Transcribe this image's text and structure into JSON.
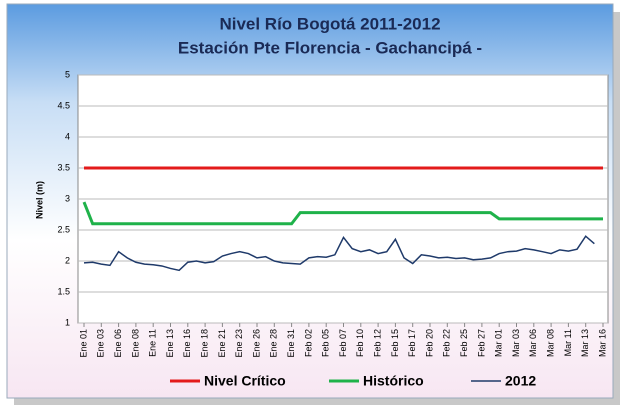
{
  "chart_data": {
    "type": "line",
    "title": "Nivel Río Bogotá 2011-2012",
    "subtitle": "Estación Pte Florencia - Gachancipá -",
    "y_label": "Nivel (m)",
    "categories": [
      "Ene 01",
      null,
      "Ene 03",
      null,
      "Ene 06",
      null,
      "Ene 08",
      null,
      "Ene 11",
      null,
      "Ene 13",
      null,
      "Ene 16",
      null,
      "Ene 18",
      null,
      "Ene 21",
      null,
      "Ene 23",
      null,
      "Ene 26",
      null,
      "Ene 28",
      null,
      "Ene 31",
      null,
      "Feb 02",
      null,
      "Feb 05",
      null,
      "Feb 07",
      null,
      "Feb 10",
      null,
      "Feb 12",
      null,
      "Feb 15",
      null,
      "Feb 17",
      null,
      "Feb 20",
      null,
      "Feb 22",
      null,
      "Feb 25",
      null,
      "Feb 27",
      null,
      "Mar 01",
      null,
      "Mar 03",
      null,
      "Mar 06",
      null,
      "Mar 08",
      null,
      "Mar 11",
      null,
      "Mar 13",
      null,
      "Mar 16"
    ],
    "series": [
      {
        "name": "Nivel Crítico",
        "color": "#e31b1b",
        "values": [
          3.5,
          3.5,
          3.5,
          3.5,
          3.5,
          3.5,
          3.5,
          3.5,
          3.5,
          3.5,
          3.5,
          3.5,
          3.5,
          3.5,
          3.5,
          3.5,
          3.5,
          3.5,
          3.5,
          3.5,
          3.5,
          3.5,
          3.5,
          3.5,
          3.5,
          3.5,
          3.5,
          3.5,
          3.5,
          3.5,
          3.5,
          3.5,
          3.5,
          3.5,
          3.5,
          3.5,
          3.5,
          3.5,
          3.5,
          3.5,
          3.5,
          3.5,
          3.5,
          3.5,
          3.5,
          3.5,
          3.5,
          3.5,
          3.5,
          3.5,
          3.5,
          3.5,
          3.5,
          3.5,
          3.5,
          3.5,
          3.5,
          3.5,
          3.5,
          3.5,
          3.5
        ]
      },
      {
        "name": "Histórico",
        "color": "#1fb24a",
        "values": [
          2.95,
          2.6,
          2.6,
          2.6,
          2.6,
          2.6,
          2.6,
          2.6,
          2.6,
          2.6,
          2.6,
          2.6,
          2.6,
          2.6,
          2.6,
          2.6,
          2.6,
          2.6,
          2.6,
          2.6,
          2.6,
          2.6,
          2.6,
          2.6,
          2.6,
          2.78,
          2.78,
          2.78,
          2.78,
          2.78,
          2.78,
          2.78,
          2.78,
          2.78,
          2.78,
          2.78,
          2.78,
          2.78,
          2.78,
          2.78,
          2.78,
          2.78,
          2.78,
          2.78,
          2.78,
          2.78,
          2.78,
          2.78,
          2.68,
          2.68,
          2.68,
          2.68,
          2.68,
          2.68,
          2.68,
          2.68,
          2.68,
          2.68,
          2.68,
          2.68,
          2.68
        ]
      },
      {
        "name": "2012",
        "color": "#1f3a6a",
        "values": [
          1.97,
          1.98,
          1.95,
          1.93,
          2.15,
          2.05,
          1.98,
          1.95,
          1.94,
          1.92,
          1.88,
          1.85,
          1.98,
          2.0,
          1.97,
          1.99,
          2.08,
          2.12,
          2.15,
          2.12,
          2.05,
          2.07,
          2.0,
          1.97,
          1.96,
          1.95,
          2.05,
          2.07,
          2.06,
          2.1,
          2.38,
          2.2,
          2.15,
          2.18,
          2.12,
          2.15,
          2.35,
          2.05,
          1.96,
          2.1,
          2.08,
          2.05,
          2.06,
          2.04,
          2.05,
          2.02,
          2.03,
          2.05,
          2.12,
          2.15,
          2.16,
          2.2,
          2.18,
          2.15,
          2.12,
          2.18,
          2.16,
          2.19,
          2.4,
          2.28,
          null
        ]
      }
    ],
    "ylim": [
      1,
      5
    ],
    "yticks": [
      1,
      1.5,
      2,
      2.5,
      3,
      3.5,
      4,
      4.5,
      5
    ],
    "grid": true
  }
}
